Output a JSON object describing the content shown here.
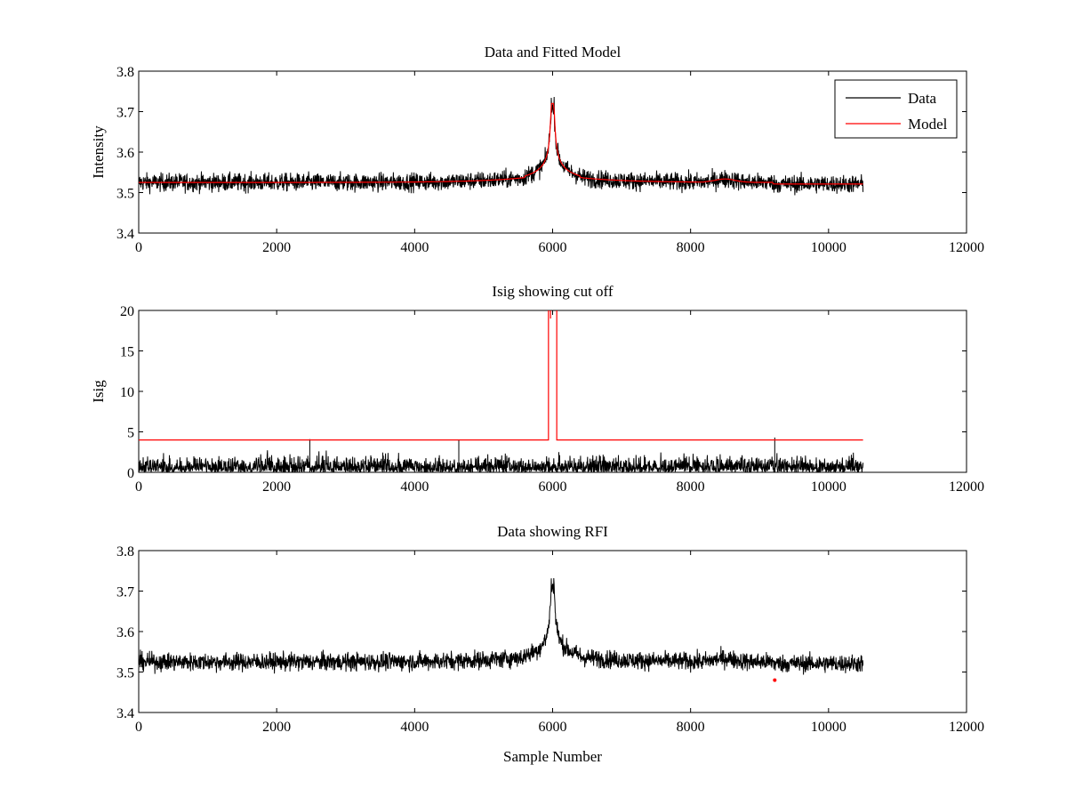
{
  "chart_data": [
    {
      "type": "line",
      "title": "Data and Fitted Model",
      "xlabel": "",
      "ylabel": "Intensity",
      "xlim": [
        0,
        12000
      ],
      "ylim": [
        3.4,
        3.8
      ],
      "xticks": [
        0,
        2000,
        4000,
        6000,
        8000,
        10000,
        12000
      ],
      "yticks": [
        3.4,
        3.5,
        3.6,
        3.7,
        3.8
      ],
      "xtick_labels": [
        "0",
        "2000",
        "4000",
        "6000",
        "8000",
        "10000",
        "12000"
      ],
      "ytick_labels": [
        "3.4",
        "3.5",
        "3.6",
        "3.7",
        "3.8"
      ],
      "legend_position": "top-right",
      "series": [
        {
          "name": "Data",
          "color": "#000000",
          "x_start": 0,
          "x_end": 10500,
          "baseline": 3.525,
          "noise_halfwidth": 0.02,
          "peak_x": 6000,
          "peak_value": 3.72
        },
        {
          "name": "Model",
          "color": "#ff0000",
          "x_start": 0,
          "x_end": 10500,
          "baseline": 3.525,
          "peak_x": 6000,
          "peak_value": 3.72
        }
      ]
    },
    {
      "type": "line",
      "title": "Isig showing cut off",
      "xlabel": "",
      "ylabel": "Isig",
      "xlim": [
        0,
        12000
      ],
      "ylim": [
        0,
        20
      ],
      "xticks": [
        0,
        2000,
        4000,
        6000,
        8000,
        10000,
        12000
      ],
      "yticks": [
        0,
        5,
        10,
        15,
        20
      ],
      "xtick_labels": [
        "0",
        "2000",
        "4000",
        "6000",
        "8000",
        "10000",
        "12000"
      ],
      "ytick_labels": [
        "0",
        "5",
        "10",
        "15",
        "20"
      ],
      "series": [
        {
          "name": "Isig",
          "color": "#000000",
          "x_start": 0,
          "x_end": 10500,
          "range": [
            0,
            3
          ],
          "spikes": [
            {
              "x": 2480,
              "value": 4.1
            },
            {
              "x": 4640,
              "value": 4.0
            },
            {
              "x": 9220,
              "value": 4.3
            }
          ]
        },
        {
          "name": "Cut off",
          "color": "#ff0000",
          "x_start": 0,
          "x_end": 10500,
          "level": 4,
          "gap_start": 5940,
          "gap_end": 6060,
          "top_value": 20
        }
      ]
    },
    {
      "type": "line",
      "title": "Data showing RFI",
      "xlabel": "Sample Number",
      "ylabel": "",
      "xlim": [
        0,
        12000
      ],
      "ylim": [
        3.4,
        3.8
      ],
      "xticks": [
        0,
        2000,
        4000,
        6000,
        8000,
        10000,
        12000
      ],
      "yticks": [
        3.4,
        3.5,
        3.6,
        3.7,
        3.8
      ],
      "xtick_labels": [
        "0",
        "2000",
        "4000",
        "6000",
        "8000",
        "10000",
        "12000"
      ],
      "ytick_labels": [
        "3.4",
        "3.5",
        "3.6",
        "3.7",
        "3.8"
      ],
      "series": [
        {
          "name": "Data",
          "color": "#000000",
          "x_start": 0,
          "x_end": 10500,
          "baseline": 3.525,
          "noise_halfwidth": 0.02,
          "peak_x": 6000,
          "peak_value": 3.72
        },
        {
          "name": "RFI",
          "color": "#ff0000",
          "points": [
            {
              "x": 9220,
              "y": 3.48
            }
          ]
        }
      ]
    }
  ]
}
